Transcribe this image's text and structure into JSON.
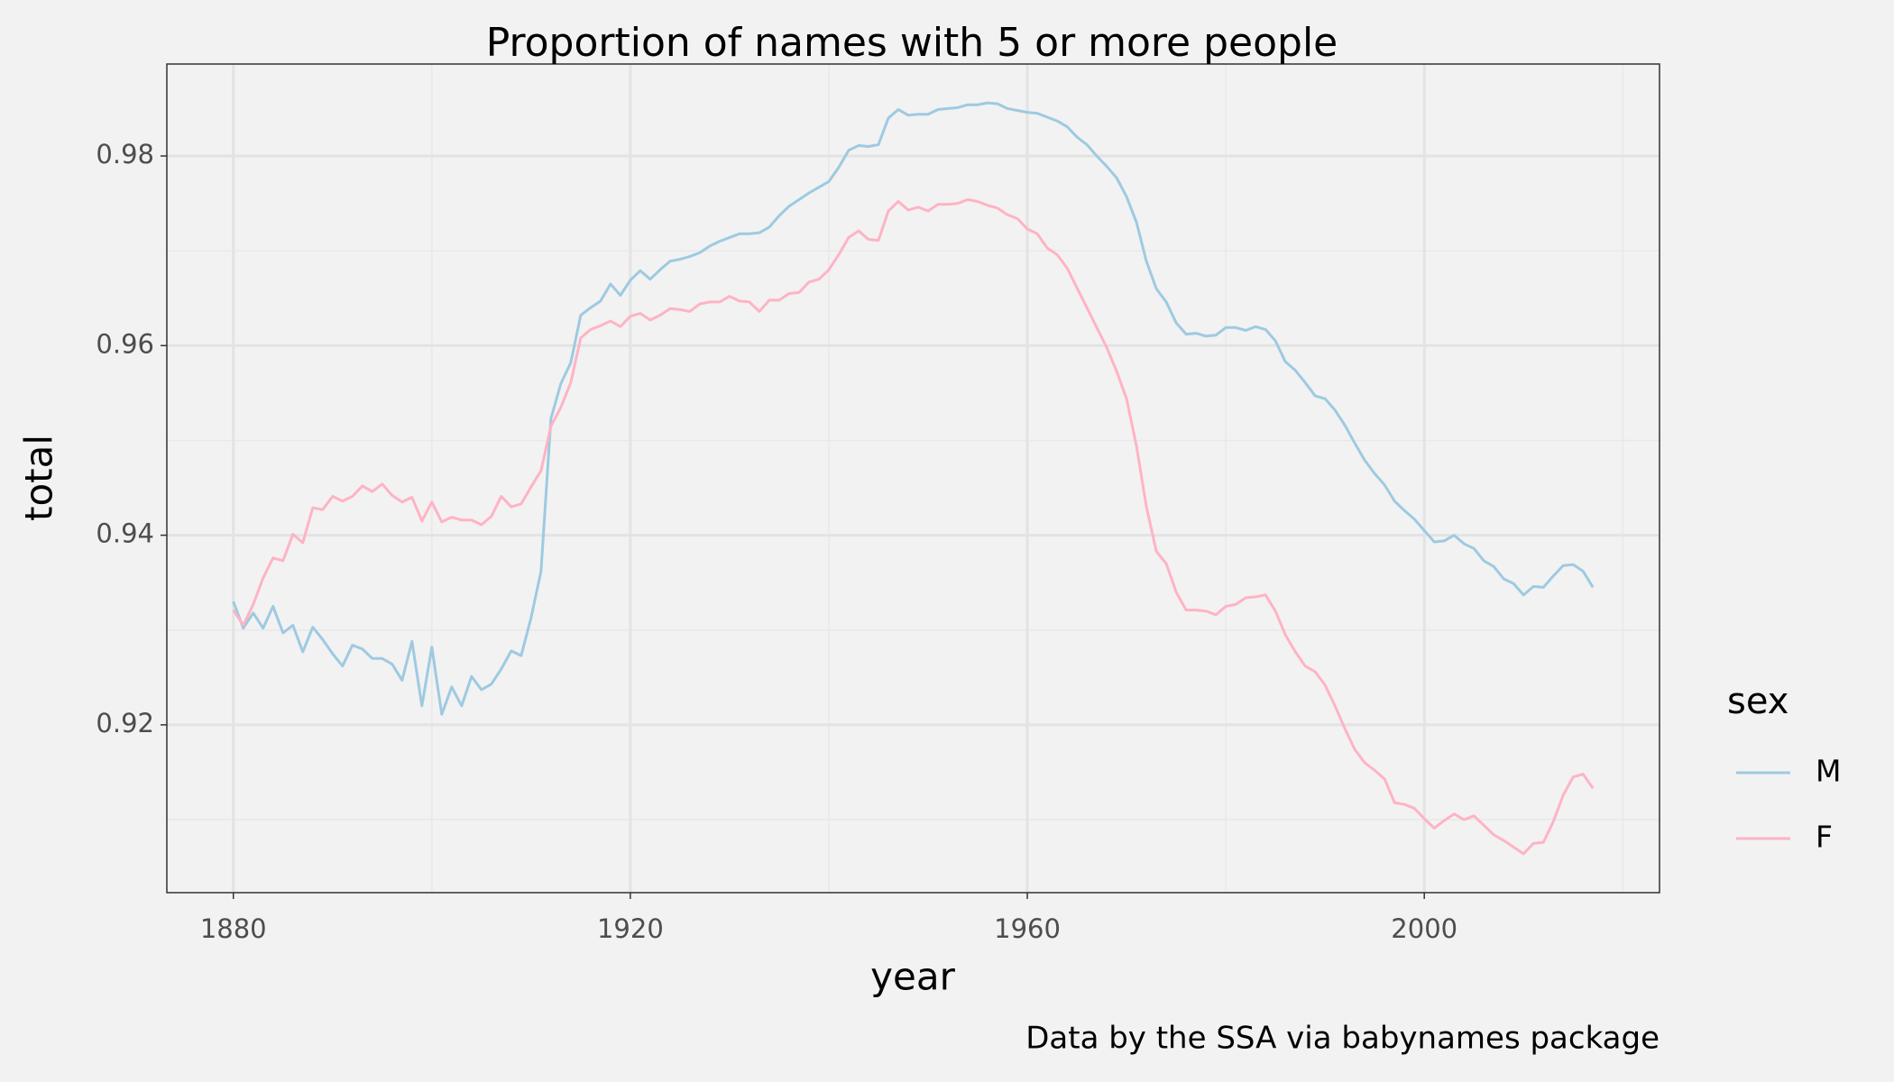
{
  "chart_data": {
    "type": "line",
    "title": "Proportion of names with 5 or more people",
    "x_label": "year",
    "y_label": "total",
    "caption": "Data by the SSA via babynames package",
    "legend_title": "sex",
    "legend_position": "right",
    "grid": true,
    "xlim": [
      1873.3,
      2023.7
    ],
    "xticks": [
      1880,
      1920,
      1960,
      2000
    ],
    "ylim": [
      0.9023,
      0.9897
    ],
    "yticks": [
      0.92,
      0.94,
      0.96,
      0.98
    ],
    "x": [
      1880,
      1881,
      1882,
      1883,
      1884,
      1885,
      1886,
      1887,
      1888,
      1889,
      1890,
      1891,
      1892,
      1893,
      1894,
      1895,
      1896,
      1897,
      1898,
      1899,
      1900,
      1901,
      1902,
      1903,
      1904,
      1905,
      1906,
      1907,
      1908,
      1909,
      1910,
      1911,
      1912,
      1913,
      1914,
      1915,
      1916,
      1917,
      1918,
      1919,
      1920,
      1921,
      1922,
      1923,
      1924,
      1925,
      1926,
      1927,
      1928,
      1929,
      1930,
      1931,
      1932,
      1933,
      1934,
      1935,
      1936,
      1937,
      1938,
      1939,
      1940,
      1941,
      1942,
      1943,
      1944,
      1945,
      1946,
      1947,
      1948,
      1949,
      1950,
      1951,
      1952,
      1953,
      1954,
      1955,
      1956,
      1957,
      1958,
      1959,
      1960,
      1961,
      1962,
      1963,
      1964,
      1965,
      1966,
      1967,
      1968,
      1969,
      1970,
      1971,
      1972,
      1973,
      1974,
      1975,
      1976,
      1977,
      1978,
      1979,
      1980,
      1981,
      1982,
      1983,
      1984,
      1985,
      1986,
      1987,
      1988,
      1989,
      1990,
      1991,
      1992,
      1993,
      1994,
      1995,
      1996,
      1997,
      1998,
      1999,
      2000,
      2001,
      2002,
      2003,
      2004,
      2005,
      2006,
      2007,
      2008,
      2009,
      2010,
      2011,
      2012,
      2013,
      2014,
      2015,
      2016,
      2017
    ],
    "series": [
      {
        "name": "M",
        "color": "#9ecae1",
        "values": [
          0.933,
          0.9302,
          0.9318,
          0.9302,
          0.9325,
          0.9297,
          0.9305,
          0.9277,
          0.9303,
          0.929,
          0.9275,
          0.9262,
          0.9284,
          0.928,
          0.927,
          0.927,
          0.9264,
          0.9247,
          0.9288,
          0.922,
          0.9282,
          0.9211,
          0.924,
          0.922,
          0.9251,
          0.9237,
          0.9243,
          0.9259,
          0.9278,
          0.9273,
          0.9313,
          0.9362,
          0.9523,
          0.956,
          0.9582,
          0.9632,
          0.964,
          0.9647,
          0.9665,
          0.9653,
          0.9669,
          0.9679,
          0.967,
          0.968,
          0.9689,
          0.9691,
          0.9694,
          0.9698,
          0.9705,
          0.971,
          0.9714,
          0.9718,
          0.9718,
          0.9719,
          0.9725,
          0.9737,
          0.9747,
          0.9754,
          0.9761,
          0.9767,
          0.9773,
          0.9788,
          0.9806,
          0.9811,
          0.981,
          0.9812,
          0.984,
          0.9849,
          0.9843,
          0.9844,
          0.9844,
          0.9849,
          0.985,
          0.9851,
          0.9854,
          0.9854,
          0.9856,
          0.9855,
          0.985,
          0.9848,
          0.9846,
          0.9845,
          0.9841,
          0.9837,
          0.9831,
          0.982,
          0.9812,
          0.98,
          0.9789,
          0.9777,
          0.9757,
          0.973,
          0.9689,
          0.966,
          0.9646,
          0.9624,
          0.9612,
          0.9613,
          0.961,
          0.9611,
          0.9619,
          0.9619,
          0.9616,
          0.962,
          0.9617,
          0.9605,
          0.9583,
          0.9574,
          0.9561,
          0.9547,
          0.9544,
          0.9532,
          0.9516,
          0.9497,
          0.9479,
          0.9465,
          0.9453,
          0.9436,
          0.9426,
          0.9417,
          0.9405,
          0.9393,
          0.9394,
          0.94,
          0.9391,
          0.9386,
          0.9373,
          0.9367,
          0.9354,
          0.9349,
          0.9337,
          0.9346,
          0.9345,
          0.9357,
          0.9368,
          0.9369,
          0.9362,
          0.9345
        ]
      },
      {
        "name": "F",
        "color": "#ffb3c4",
        "values": [
          0.9321,
          0.9305,
          0.9327,
          0.9355,
          0.9376,
          0.9373,
          0.9401,
          0.9392,
          0.9429,
          0.9427,
          0.9441,
          0.9436,
          0.9441,
          0.9452,
          0.9446,
          0.9454,
          0.9442,
          0.9435,
          0.944,
          0.9415,
          0.9435,
          0.9414,
          0.9419,
          0.9416,
          0.9416,
          0.9411,
          0.942,
          0.9441,
          0.943,
          0.9433,
          0.9451,
          0.9468,
          0.9515,
          0.9535,
          0.9561,
          0.9608,
          0.9617,
          0.9621,
          0.9626,
          0.962,
          0.9631,
          0.9634,
          0.9627,
          0.9632,
          0.9639,
          0.9638,
          0.9636,
          0.9644,
          0.9646,
          0.9646,
          0.9652,
          0.9647,
          0.9646,
          0.9636,
          0.9648,
          0.9648,
          0.9655,
          0.9656,
          0.9667,
          0.967,
          0.968,
          0.9696,
          0.9714,
          0.9721,
          0.9712,
          0.9711,
          0.9742,
          0.9752,
          0.9743,
          0.9746,
          0.9742,
          0.9749,
          0.9749,
          0.975,
          0.9754,
          0.9752,
          0.9748,
          0.9745,
          0.9738,
          0.9734,
          0.9723,
          0.9718,
          0.9703,
          0.9696,
          0.9682,
          0.9661,
          0.964,
          0.9619,
          0.9598,
          0.9573,
          0.9544,
          0.9494,
          0.943,
          0.9383,
          0.937,
          0.934,
          0.9321,
          0.9321,
          0.932,
          0.9316,
          0.9325,
          0.9327,
          0.9334,
          0.9335,
          0.9337,
          0.932,
          0.9295,
          0.9277,
          0.9262,
          0.9256,
          0.9242,
          0.922,
          0.9196,
          0.9174,
          0.916,
          0.9152,
          0.9143,
          0.9118,
          0.9116,
          0.9112,
          0.9101,
          0.9091,
          0.9099,
          0.9106,
          0.91,
          0.9104,
          0.9094,
          0.9084,
          0.9078,
          0.9071,
          0.9064,
          0.9075,
          0.9076,
          0.9098,
          0.9126,
          0.9145,
          0.9148,
          0.9133
        ]
      }
    ]
  }
}
